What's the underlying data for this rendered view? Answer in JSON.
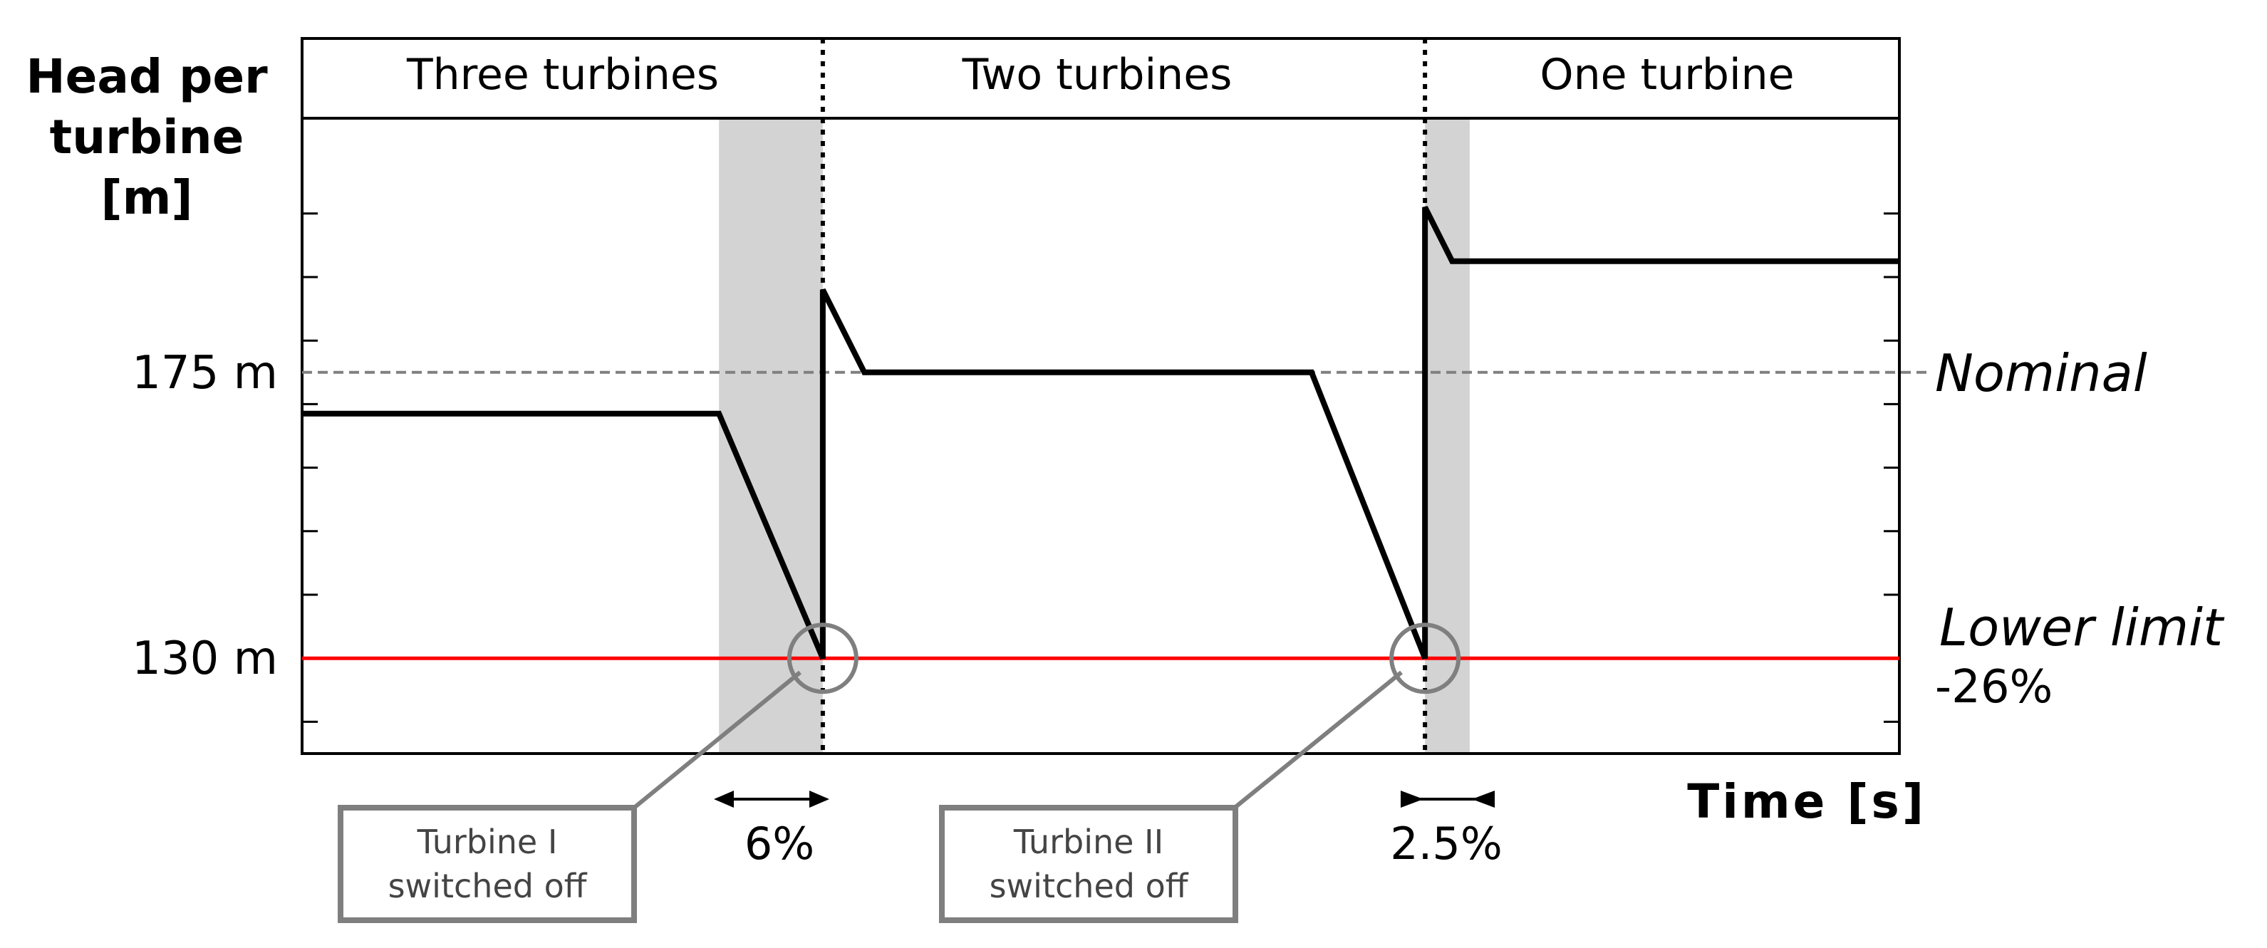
{
  "chart_data": {
    "type": "line",
    "ylabel_lines": [
      "Head per",
      "turbine",
      "[m]"
    ],
    "xlabel": "Time [s]",
    "yticks": [
      {
        "value": 175,
        "label": "175 m"
      },
      {
        "value": 130,
        "label": "130 m"
      }
    ],
    "ylim": [
      115,
      215
    ],
    "xlim": [
      0,
      100
    ],
    "x_ticks_shown": false,
    "regions": [
      {
        "label": "Three turbines",
        "x_start": 0,
        "x_end": 32.6
      },
      {
        "label": "Two turbines",
        "x_start": 32.6,
        "x_end": 70.3
      },
      {
        "label": "One turbine",
        "x_start": 70.3,
        "x_end": 100
      }
    ],
    "region_dividers": [
      32.6,
      70.3
    ],
    "shaded_spans": [
      {
        "x_start": 26.1,
        "x_end": 32.6,
        "label": "6%"
      },
      {
        "x_start": 70.3,
        "x_end": 73.1,
        "label": "2.5%"
      }
    ],
    "series": [
      {
        "color": "#000000",
        "x": [
          0,
          26.1,
          32.6,
          32.6,
          35.2,
          63.2,
          70.3,
          70.3,
          72.0,
          100
        ],
        "y": [
          168.5,
          168.5,
          130,
          188,
          175,
          175,
          130,
          201,
          192.5,
          192.5
        ]
      }
    ],
    "reference_lines": [
      {
        "y": 175,
        "label": "Nominal",
        "style": "dashed",
        "color": "#808080"
      },
      {
        "y": 130,
        "label_lines": [
          "Lower limit",
          "-26%"
        ],
        "style": "solid",
        "color": "#ff0000"
      }
    ],
    "annotations": [
      {
        "text_lines": [
          "Turbine I",
          "switched off"
        ],
        "x": 32.6,
        "y": 130
      },
      {
        "text_lines": [
          "Turbine II",
          "switched off"
        ],
        "x": 70.3,
        "y": 130
      }
    ]
  }
}
